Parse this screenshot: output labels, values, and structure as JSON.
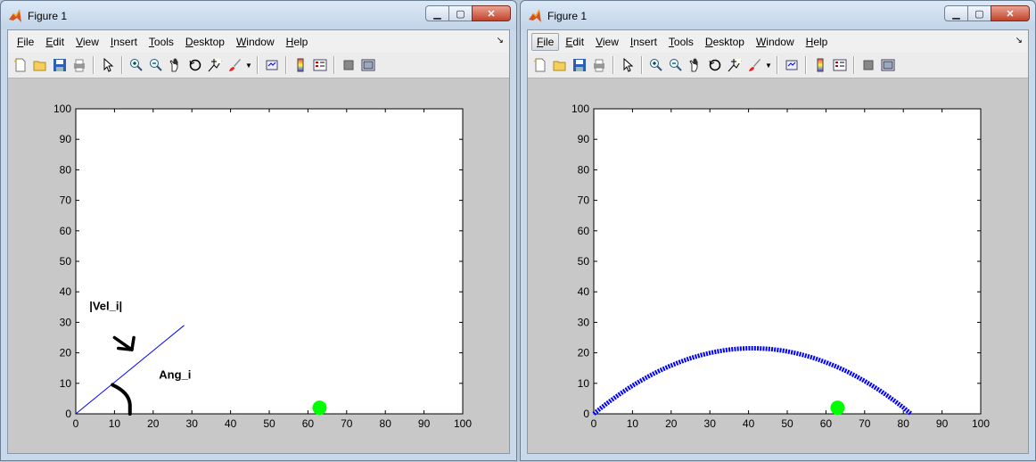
{
  "windows": [
    {
      "title": "Figure 1",
      "menu": [
        {
          "label": "File",
          "u": "F",
          "rest": "ile"
        },
        {
          "label": "Edit",
          "u": "E",
          "rest": "dit"
        },
        {
          "label": "View",
          "u": "V",
          "rest": "iew"
        },
        {
          "label": "Insert",
          "u": "I",
          "rest": "nsert"
        },
        {
          "label": "Tools",
          "u": "T",
          "rest": "ools"
        },
        {
          "label": "Desktop",
          "u": "D",
          "rest": "esktop"
        },
        {
          "label": "Window",
          "u": "W",
          "rest": "indow"
        },
        {
          "label": "Help",
          "u": "H",
          "rest": "elp"
        }
      ],
      "annotations": {
        "velocity": "|Vel_i|",
        "angle": "Ang_i"
      },
      "chart_data": {
        "type": "line",
        "xlim": [
          0,
          100
        ],
        "ylim": [
          0,
          100
        ],
        "xticks": [
          "0",
          "10",
          "20",
          "30",
          "40",
          "50",
          "60",
          "70",
          "80",
          "90",
          "100"
        ],
        "yticks": [
          "0",
          "10",
          "20",
          "30",
          "40",
          "50",
          "60",
          "70",
          "80",
          "90",
          "100"
        ],
        "series": [
          {
            "x": [
              0,
              28
            ],
            "y": [
              0,
              29
            ],
            "color": "#0000ff"
          }
        ],
        "target": {
          "x": 63,
          "y": 2,
          "color": "#00ff00"
        }
      }
    },
    {
      "title": "Figure 1",
      "menu": [
        {
          "label": "File",
          "u": "F",
          "rest": "ile"
        },
        {
          "label": "Edit",
          "u": "E",
          "rest": "dit"
        },
        {
          "label": "View",
          "u": "V",
          "rest": "iew"
        },
        {
          "label": "Insert",
          "u": "I",
          "rest": "nsert"
        },
        {
          "label": "Tools",
          "u": "T",
          "rest": "ools"
        },
        {
          "label": "Desktop",
          "u": "D",
          "rest": "esktop"
        },
        {
          "label": "Window",
          "u": "W",
          "rest": "indow"
        },
        {
          "label": "Help",
          "u": "H",
          "rest": "elp"
        }
      ],
      "chart_data": {
        "type": "line",
        "xlim": [
          0,
          100
        ],
        "ylim": [
          0,
          100
        ],
        "xticks": [
          "0",
          "10",
          "20",
          "30",
          "40",
          "50",
          "60",
          "70",
          "80",
          "90",
          "100"
        ],
        "yticks": [
          "0",
          "10",
          "20",
          "30",
          "40",
          "50",
          "60",
          "70",
          "80",
          "90",
          "100"
        ],
        "series": [
          {
            "x_start": 0,
            "x_end": 82,
            "peak_x": 41,
            "peak_y": 21.5,
            "color": "#0000ff"
          }
        ],
        "target": {
          "x": 63,
          "y": 2,
          "color": "#00ff00"
        }
      }
    }
  ],
  "icons": [
    "new-file-icon",
    "open-folder-icon",
    "save-icon",
    "print-icon",
    "pointer-icon",
    "zoom-in-icon",
    "zoom-out-icon",
    "pan-icon",
    "rotate-icon",
    "data-cursor-icon",
    "brush-icon",
    "link-icon",
    "colorbar-icon",
    "legend-icon",
    "hide-tools-icon",
    "show-tools-icon"
  ]
}
